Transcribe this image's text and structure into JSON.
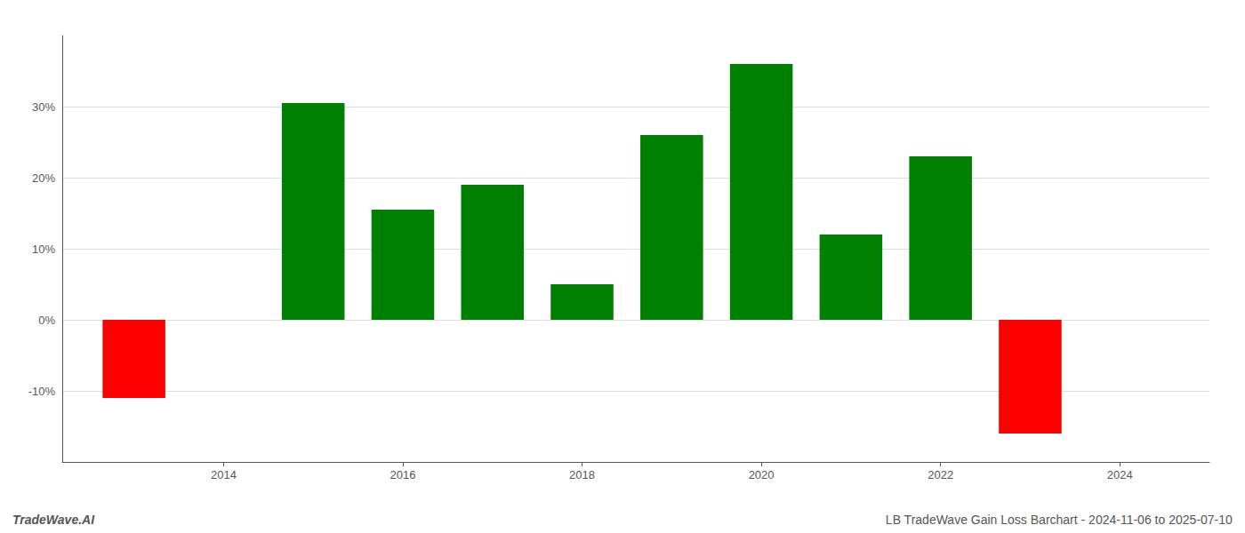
{
  "chart_data": {
    "type": "bar",
    "x": [
      2013,
      2015,
      2016,
      2017,
      2018,
      2019,
      2020,
      2021,
      2022,
      2023
    ],
    "values": [
      -11.0,
      30.5,
      15.5,
      19.0,
      5.0,
      26.0,
      36.0,
      12.0,
      23.0,
      -16.0
    ],
    "colors": [
      "#ff0000",
      "#008000",
      "#008000",
      "#008000",
      "#008000",
      "#008000",
      "#008000",
      "#008000",
      "#008000",
      "#ff0000"
    ],
    "xlim": [
      2012.2,
      2025.0
    ],
    "xticks": [
      2014,
      2016,
      2018,
      2020,
      2022,
      2024
    ],
    "ylim": [
      -20,
      40
    ],
    "yticks": [
      {
        "value": -10,
        "label": "-10%"
      },
      {
        "value": 0,
        "label": "0%"
      },
      {
        "value": 10,
        "label": "10%"
      },
      {
        "value": 20,
        "label": "20%"
      },
      {
        "value": 30,
        "label": "30%"
      }
    ],
    "grid": true,
    "annotations": [
      "TradeWave.AI",
      "LB TradeWave Gain Loss Barchart - 2024-11-06 to 2025-07-10"
    ]
  }
}
